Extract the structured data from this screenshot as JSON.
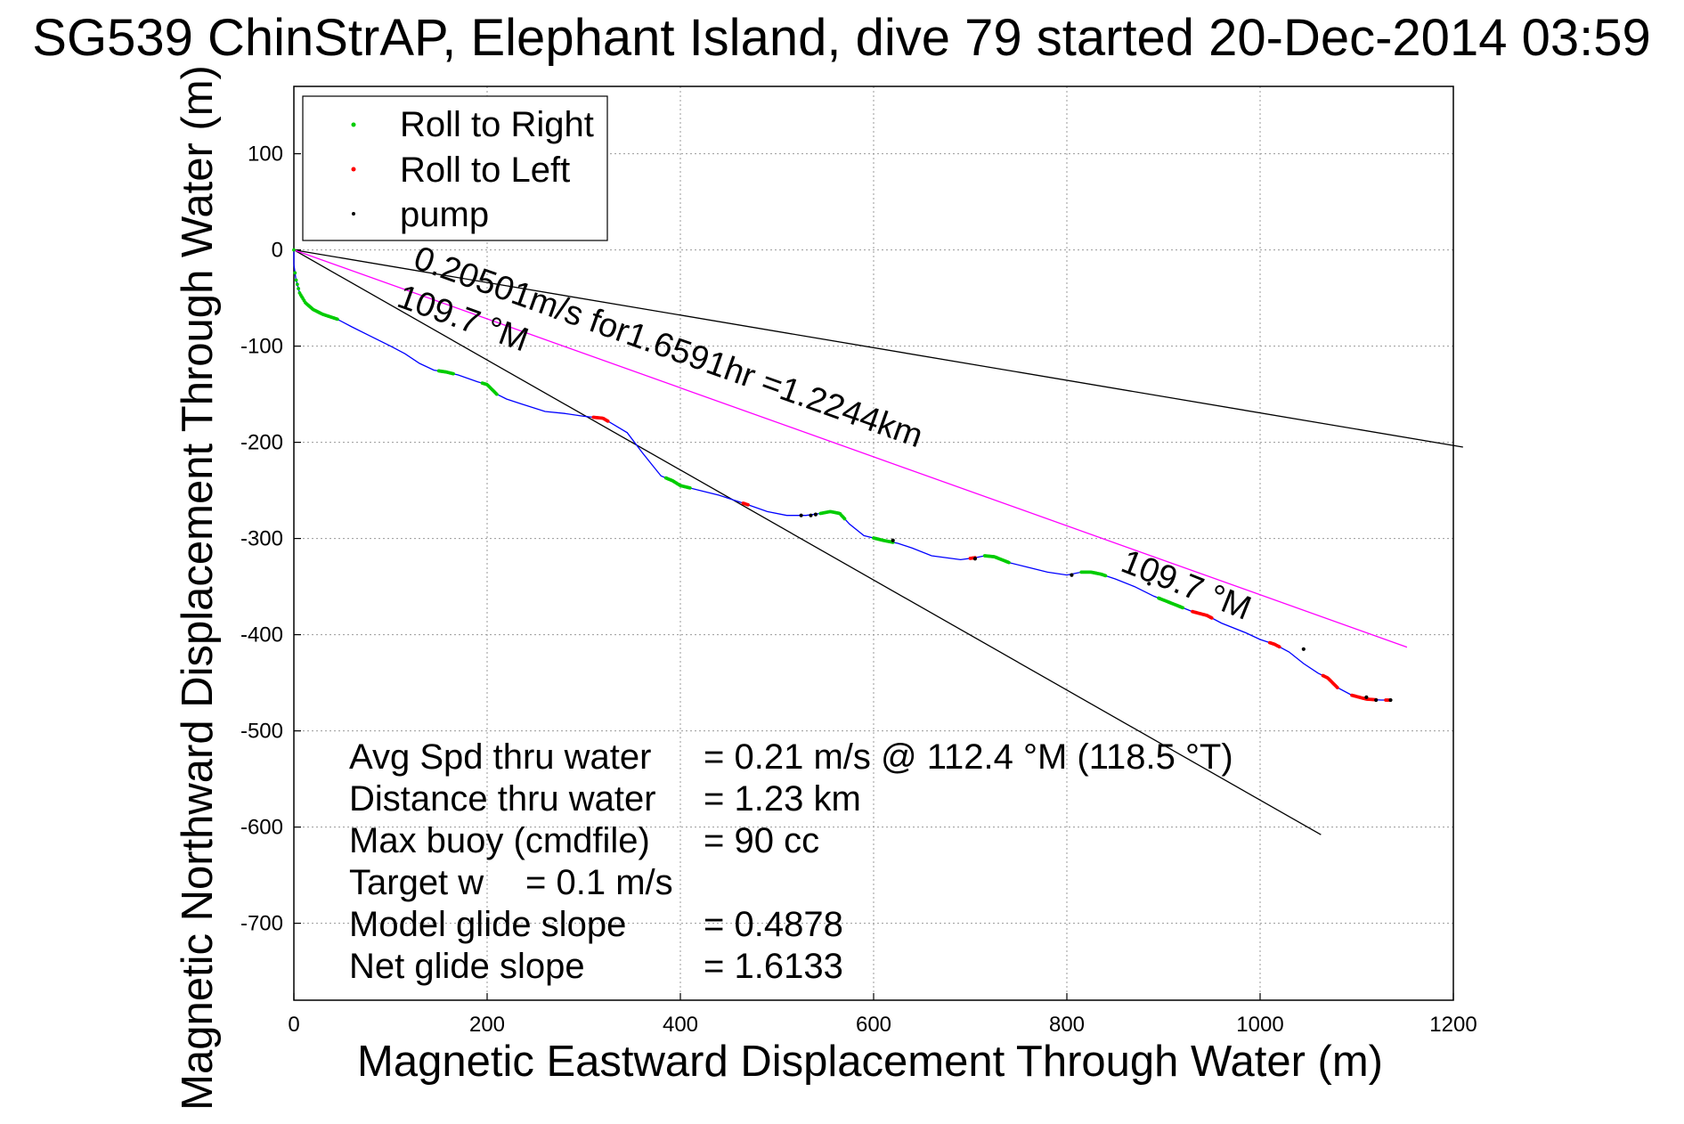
{
  "chart_data": {
    "type": "line",
    "title": "SG539 ChinStrAP, Elephant Island, dive 79 started 20-Dec-2014 03:59",
    "xlabel": "Magnetic Eastward Displacement Through Water (m)",
    "ylabel": "Magnetic Northward Displacement Through Water (m)",
    "xlim": [
      0,
      1200
    ],
    "ylim": [
      -780,
      170
    ],
    "xticks": [
      0,
      200,
      400,
      600,
      800,
      1000,
      1200
    ],
    "yticks": [
      -700,
      -600,
      -500,
      -400,
      -300,
      -200,
      -100,
      0,
      100
    ],
    "grid": true,
    "legend_position": "top-left",
    "legend": [
      {
        "label": "Roll to Right",
        "color": "#00cc00"
      },
      {
        "label": "Roll to Left",
        "color": "#ff0000"
      },
      {
        "label": "pump",
        "color": "#000000"
      }
    ],
    "track": {
      "color": "#0000ff",
      "x": [
        0,
        0,
        2,
        6,
        12,
        20,
        30,
        45,
        60,
        80,
        100,
        115,
        130,
        145,
        158,
        170,
        190,
        200,
        210,
        220,
        235,
        260,
        280,
        300,
        320,
        345,
        360,
        372,
        380,
        392,
        400,
        420,
        440,
        470,
        490,
        510,
        530,
        545,
        555,
        565,
        575,
        590,
        610,
        625,
        640,
        660,
        690,
        705,
        715,
        725,
        740,
        760,
        780,
        800,
        815,
        825,
        835,
        850,
        870,
        890,
        910,
        930,
        945,
        960,
        985,
        1000,
        1015,
        1030,
        1045,
        1060,
        1070,
        1080,
        1095,
        1110,
        1125,
        1135
      ],
      "y": [
        0,
        -15,
        -30,
        -45,
        -55,
        -62,
        -67,
        -72,
        -80,
        -90,
        -100,
        -108,
        -118,
        -125,
        -127,
        -130,
        -137,
        -140,
        -150,
        -155,
        -160,
        -168,
        -170,
        -173,
        -175,
        -190,
        -210,
        -225,
        -235,
        -240,
        -245,
        -250,
        -255,
        -265,
        -272,
        -276,
        -276,
        -274,
        -272,
        -274,
        -285,
        -297,
        -302,
        -305,
        -310,
        -318,
        -322,
        -320,
        -318,
        -319,
        -325,
        -330,
        -335,
        -338,
        -335,
        -335,
        -337,
        -342,
        -350,
        -360,
        -368,
        -376,
        -380,
        -388,
        -398,
        -405,
        -410,
        -418,
        -430,
        -440,
        -445,
        -455,
        -463,
        -467,
        -468,
        -468
      ]
    },
    "reference_lines": [
      {
        "name": "109.7 °M",
        "color": "#000000",
        "from": [
          0,
          0
        ],
        "to": [
          1063,
          -608
        ]
      },
      {
        "color": "#000000",
        "from": [
          0,
          0
        ],
        "to": [
          1210,
          -205
        ]
      },
      {
        "name": "0.20501m/s for1.6591hr =1.2244km",
        "color": "#ff00ff",
        "from": [
          0,
          0
        ],
        "to": [
          1152,
          -413
        ]
      }
    ],
    "roll_right_segments": [
      [
        0,
        0.2,
        6,
        12,
        20,
        30,
        45
      ],
      [
        150,
        165
      ],
      [
        195,
        210
      ],
      [
        385,
        410
      ],
      [
        545,
        570
      ],
      [
        600,
        620
      ],
      [
        715,
        740
      ],
      [
        815,
        840
      ],
      [
        895,
        920
      ]
    ],
    "roll_left_segments": [
      [
        310,
        325
      ],
      [
        465,
        470
      ],
      [
        700,
        705
      ],
      [
        930,
        950
      ],
      [
        1010,
        1020
      ],
      [
        1065,
        1080
      ],
      [
        1095,
        1120
      ],
      [
        1130,
        1135
      ]
    ],
    "pump_points": [
      [
        525,
        -276
      ],
      [
        535,
        -276
      ],
      [
        540,
        -275
      ],
      [
        620,
        -302
      ],
      [
        705,
        -321
      ],
      [
        805,
        -338
      ],
      [
        885,
        -347
      ],
      [
        1045,
        -415
      ],
      [
        1110,
        -465
      ],
      [
        1120,
        -468
      ],
      [
        1135,
        -468
      ]
    ],
    "annotations": {
      "heading_upper": "109.7 °M",
      "heading_lower": "109.7 °M",
      "speed_line": "0.20501m/s for1.6591hr =1.2244km"
    },
    "stats": [
      {
        "label": "Avg Spd thru water",
        "value": "=  0.21 m/s @ 112.4 °M (118.5 °T)"
      },
      {
        "label": "Distance thru water",
        "value": "=  1.23 km"
      },
      {
        "label": "Max buoy (cmdfile)",
        "value": "= 90 cc"
      },
      {
        "label": "Target w",
        "value": "= 0.1 m/s"
      },
      {
        "label": "Model glide slope",
        "value": "= 0.4878"
      },
      {
        "label": "Net glide slope",
        "value": "= 1.6133"
      }
    ]
  }
}
